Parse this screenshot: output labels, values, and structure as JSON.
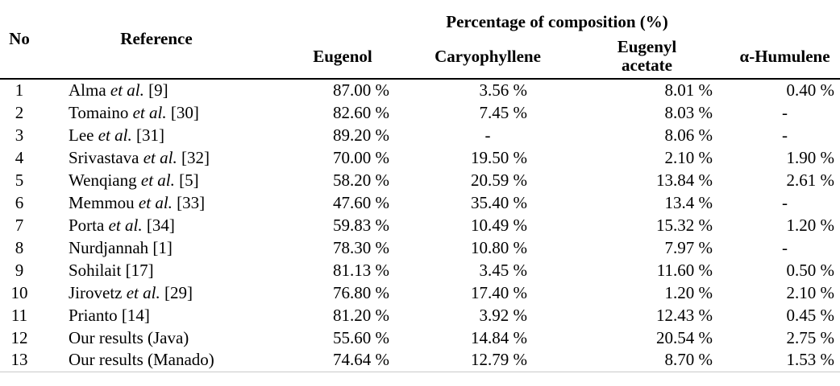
{
  "colors": {
    "text": "#000000",
    "background": "#ffffff",
    "header_rule": "#000000",
    "bottom_rule": "#c9c9c9"
  },
  "table": {
    "headers": {
      "no": "No",
      "reference": "Reference",
      "group": "Percentage of composition (%)",
      "eugenol": "Eugenol",
      "caryophyllene": "Caryophyllene",
      "eugenyl_acetate": "Eugenyl acetate",
      "humulene": "α-Humulene"
    },
    "rows": [
      {
        "no": "1",
        "ref_pre": "Alma ",
        "ref_italic": "et al.",
        "ref_post": " [9]",
        "eugenol": "87.00 %",
        "caryophyllene": "3.56 %",
        "eugenyl_acetate": "8.01 %",
        "humulene": "0.40 %"
      },
      {
        "no": "2",
        "ref_pre": "Tomaino ",
        "ref_italic": "et al.",
        "ref_post": " [30]",
        "eugenol": "82.60 %",
        "caryophyllene": "7.45 %",
        "eugenyl_acetate": "8.03 %",
        "humulene": "-"
      },
      {
        "no": "3",
        "ref_pre": "Lee ",
        "ref_italic": "et al.",
        "ref_post": " [31]",
        "eugenol": "89.20 %",
        "caryophyllene": "-",
        "eugenyl_acetate": "8.06 %",
        "humulene": "-"
      },
      {
        "no": "4",
        "ref_pre": "Srivastava ",
        "ref_italic": "et al.",
        "ref_post": " [32]",
        "eugenol": "70.00 %",
        "caryophyllene": "19.50 %",
        "eugenyl_acetate": "2.10 %",
        "humulene": "1.90 %"
      },
      {
        "no": "5",
        "ref_pre": "Wenqiang ",
        "ref_italic": "et al.",
        "ref_post": " [5]",
        "eugenol": "58.20 %",
        "caryophyllene": "20.59 %",
        "eugenyl_acetate": "13.84 %",
        "humulene": "2.61 %"
      },
      {
        "no": "6",
        "ref_pre": "Memmou ",
        "ref_italic": "et al.",
        "ref_post": " [33]",
        "eugenol": "47.60 %",
        "caryophyllene": "35.40 %",
        "eugenyl_acetate": "13.4 %",
        "humulene": "-"
      },
      {
        "no": "7",
        "ref_pre": "Porta ",
        "ref_italic": "et al.",
        "ref_post": " [34]",
        "eugenol": "59.83 %",
        "caryophyllene": "10.49 %",
        "eugenyl_acetate": "15.32 %",
        "humulene": "1.20 %"
      },
      {
        "no": "8",
        "ref_pre": "Nurdjannah [1]",
        "ref_italic": "",
        "ref_post": "",
        "eugenol": "78.30 %",
        "caryophyllene": "10.80 %",
        "eugenyl_acetate": "7.97 %",
        "humulene": "-"
      },
      {
        "no": "9",
        "ref_pre": "Sohilait [17]",
        "ref_italic": "",
        "ref_post": "",
        "eugenol": "81.13 %",
        "caryophyllene": "3.45 %",
        "eugenyl_acetate": "11.60 %",
        "humulene": "0.50 %"
      },
      {
        "no": "10",
        "ref_pre": "Jirovetz ",
        "ref_italic": "et al.",
        "ref_post": " [29]",
        "eugenol": "76.80 %",
        "caryophyllene": "17.40 %",
        "eugenyl_acetate": "1.20 %",
        "humulene": "2.10 %"
      },
      {
        "no": "11",
        "ref_pre": "Prianto [14]",
        "ref_italic": "",
        "ref_post": "",
        "eugenol": "81.20 %",
        "caryophyllene": "3.92 %",
        "eugenyl_acetate": "12.43 %",
        "humulene": "0.45 %"
      },
      {
        "no": "12",
        "ref_pre": "Our results (Java)",
        "ref_italic": "",
        "ref_post": "",
        "eugenol": "55.60 %",
        "caryophyllene": "14.84 %",
        "eugenyl_acetate": "20.54 %",
        "humulene": "2.75 %"
      },
      {
        "no": "13",
        "ref_pre": "Our results (Manado)",
        "ref_italic": "",
        "ref_post": "",
        "eugenol": "74.64 %",
        "caryophyllene": "12.79 %",
        "eugenyl_acetate": "8.70 %",
        "humulene": "1.53 %"
      }
    ]
  }
}
